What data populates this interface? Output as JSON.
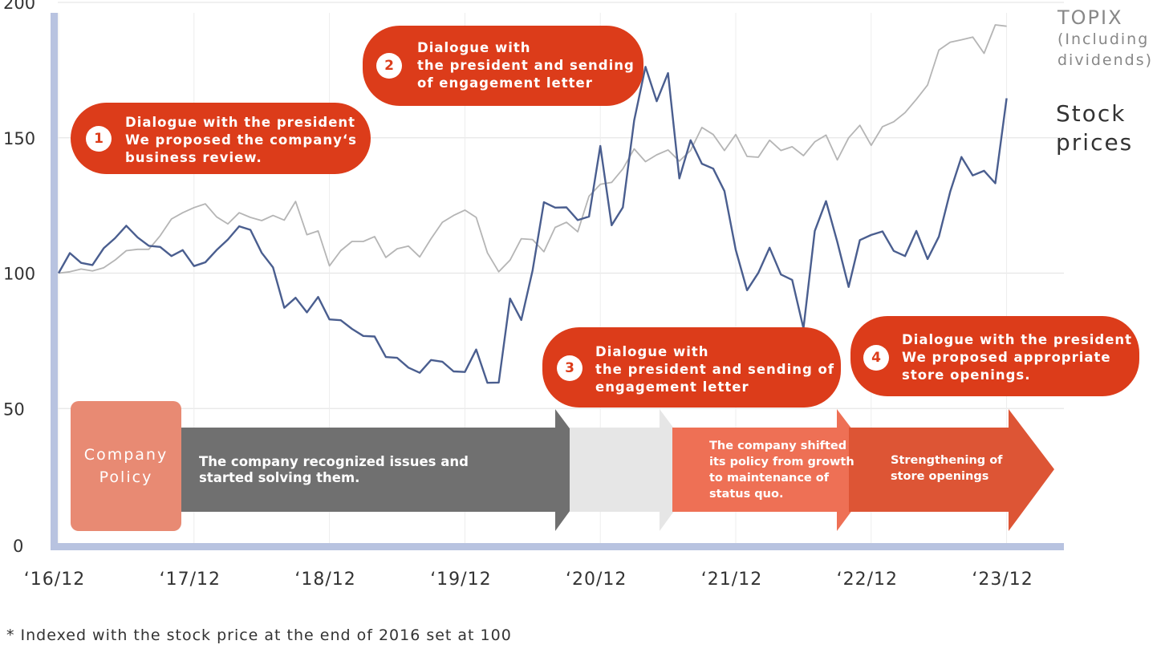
{
  "chart_data": {
    "type": "line",
    "x_labels": [
      "'16/12",
      "'17/12",
      "'18/12",
      "'19/12",
      "'20/12",
      "'21/12",
      "'22/12",
      "'23/12"
    ],
    "x_label_display": [
      "‘16/12",
      "‘17/12",
      "‘18/12",
      "‘19/12",
      "‘20/12",
      "‘21/12",
      "‘22/12",
      "‘23/12"
    ],
    "y_ticks": [
      0,
      50,
      100,
      150,
      200
    ],
    "ylim": [
      0,
      200
    ],
    "grid": "horizontal",
    "series": [
      {
        "name": "TOPIX (Including dividends)",
        "color": "#b5b5b5",
        "values": [
          100,
          100.5,
          101.5,
          100.8,
          102,
          104.8,
          108.3,
          108.8,
          108.8,
          113.8,
          120,
          122.3,
          124.2,
          125.6,
          120.8,
          118.2,
          122.3,
          120.6,
          119.4,
          121.3,
          119.6,
          126.5,
          114.2,
          115.6,
          102.7,
          108.3,
          111.7,
          111.7,
          113.5,
          105.8,
          109,
          110,
          106,
          112.7,
          118.8,
          121.3,
          123.3,
          120.6,
          107.5,
          100.5,
          104.8,
          112.7,
          112.4,
          107.9,
          116.9,
          118.8,
          115.3,
          128.4,
          132.8,
          133.5,
          138.5,
          145.9,
          141.2,
          143.7,
          145.5,
          141.4,
          145.3,
          153.8,
          151.2,
          145.3,
          151.2,
          143.1,
          142.8,
          149.1,
          145.3,
          146.7,
          143.4,
          148.5,
          151,
          141.8,
          150,
          154.6,
          147.2,
          154.1,
          155.9,
          159.3,
          164.2,
          169.5,
          182.4,
          185.3,
          186.2,
          187.2,
          181.2,
          191.7,
          191.2
        ]
      },
      {
        "name": "Stock prices",
        "color": "#4a5e8f",
        "values": [
          100,
          107.4,
          103.8,
          103,
          109.2,
          112.9,
          117.5,
          113.2,
          110.1,
          109.7,
          106.3,
          108.5,
          102.6,
          104,
          108.5,
          112.4,
          117.3,
          116,
          107.5,
          102.1,
          87.2,
          90.9,
          85.5,
          91.2,
          82.9,
          82.6,
          79.4,
          76.8,
          76.6,
          69,
          68.7,
          65.1,
          63.2,
          67.9,
          67.3,
          63.7,
          63.5,
          71.8,
          59.5,
          59.6,
          90.6,
          82.7,
          101,
          126.2,
          124.2,
          124.3,
          119.6,
          120.9,
          147,
          117.7,
          124.3,
          156.4,
          176.2,
          163.5,
          173.9,
          135,
          149.1,
          140.4,
          138.6,
          130.3,
          108.6,
          93.7,
          100.1,
          109.4,
          99.5,
          97.5,
          79.6,
          115.6,
          126.6,
          111.5,
          94.9,
          112.2,
          114.1,
          115.4,
          108.2,
          106.3,
          115.6,
          105.2,
          113.5,
          130.1,
          142.9,
          136.1,
          137.8,
          133.2,
          164.6
        ]
      }
    ]
  },
  "legend": {
    "topix_line1": "TOPIX",
    "topix_line2": "(Including",
    "topix_line3": "dividends)",
    "stock_line1": "Stock",
    "stock_line2": "prices"
  },
  "callouts": [
    {
      "num": "1",
      "text": "Dialogue with the president\nWe proposed the company‘s\nbusiness review."
    },
    {
      "num": "2",
      "text": "Dialogue with\nthe president and sending\nof engagement letter"
    },
    {
      "num": "3",
      "text": "Dialogue with\nthe president and sending of\nengagement letter"
    },
    {
      "num": "4",
      "text": "Dialogue with the president\nWe proposed appropriate\nstore openings."
    }
  ],
  "policy": {
    "label": "Company\nPolicy",
    "phase1": "The company recognized issues and\nstarted solving them.",
    "phase2": "The company shifted\nits policy from growth\nto maintenance of\nstatus quo.",
    "phase3": "Strengthening of\nstore openings"
  },
  "colors": {
    "callout": "#dc3c1a",
    "axis": "#b8c3e0",
    "arrow_gray": "#707070",
    "arrow_light": "#e6e6e6",
    "arrow_salmon": "#ee7055",
    "arrow_red": "#dd5535",
    "policy_box": "#e88a73"
  },
  "footnote": "* Indexed with the stock price at the end of 2016 set at 100"
}
